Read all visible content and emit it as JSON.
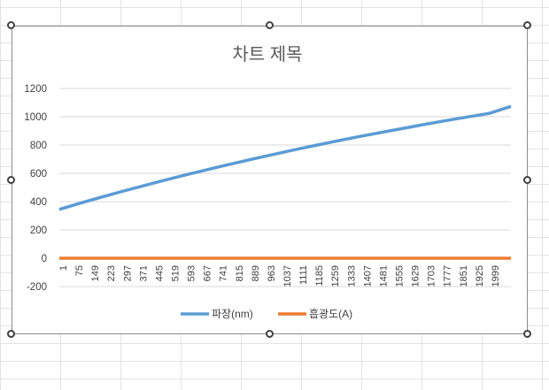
{
  "chart_data": {
    "type": "line",
    "title": "차트 제목",
    "xlabel": "",
    "ylabel": "",
    "ylim": [
      -200,
      1200
    ],
    "yticks": [
      -200,
      0,
      200,
      400,
      600,
      800,
      1000,
      1200
    ],
    "x_tick_labels": [
      "1",
      "75",
      "149",
      "223",
      "297",
      "371",
      "445",
      "519",
      "593",
      "667",
      "741",
      "815",
      "889",
      "963",
      "1037",
      "1111",
      "1185",
      "1259",
      "1333",
      "1407",
      "1481",
      "1555",
      "1629",
      "1703",
      "1777",
      "1851",
      "1925",
      "1999"
    ],
    "x_range": [
      1,
      2100
    ],
    "grid": "horizontal",
    "legend_position": "bottom",
    "series": [
      {
        "name": "파장(nm)",
        "color": "#5b9bd5",
        "x": [
          1,
          100,
          200,
          300,
          400,
          500,
          600,
          700,
          800,
          900,
          1000,
          1100,
          1200,
          1300,
          1400,
          1500,
          1600,
          1700,
          1800,
          1900,
          2000,
          2100
        ],
        "values": [
          345,
          390,
          433,
          475,
          515,
          555,
          593,
          630,
          666,
          701,
          735,
          768,
          800,
          831,
          861,
          890,
          918,
          946,
          973,
          999,
          1024,
          1073
        ]
      },
      {
        "name": "흡광도(A)",
        "color": "#ed7d31",
        "x": [
          1,
          2100
        ],
        "values": [
          0,
          0
        ]
      }
    ]
  }
}
